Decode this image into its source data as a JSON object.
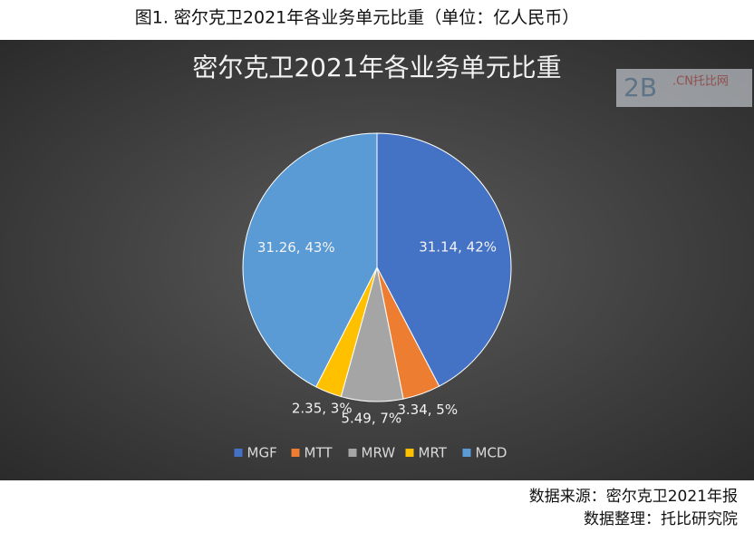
{
  "caption": "图1. 密尔克卫2021年各业务单元比重（单位：亿人民币）",
  "chart_data": {
    "type": "pie",
    "title": "密尔克卫2021年各业务单元比重",
    "categories": [
      "MGF",
      "MTT",
      "MRW",
      "MRT",
      "MCD"
    ],
    "values": [
      31.14,
      3.34,
      5.49,
      2.35,
      31.26
    ],
    "value_labels": [
      "31.14, 42%",
      "3.34, 5%",
      "5.49, 7%",
      "2.35, 3%",
      "31.26, 43%"
    ],
    "colors": [
      "#4472c4",
      "#ed7d31",
      "#a5a5a5",
      "#ffc000",
      "#5b9bd5"
    ],
    "legend": "bottom"
  },
  "watermark": {
    "logo": "2B",
    "site": ".CN托比网"
  },
  "source": [
    "数据来源：密尔克卫2021年报",
    "数据整理：托比研究院"
  ]
}
